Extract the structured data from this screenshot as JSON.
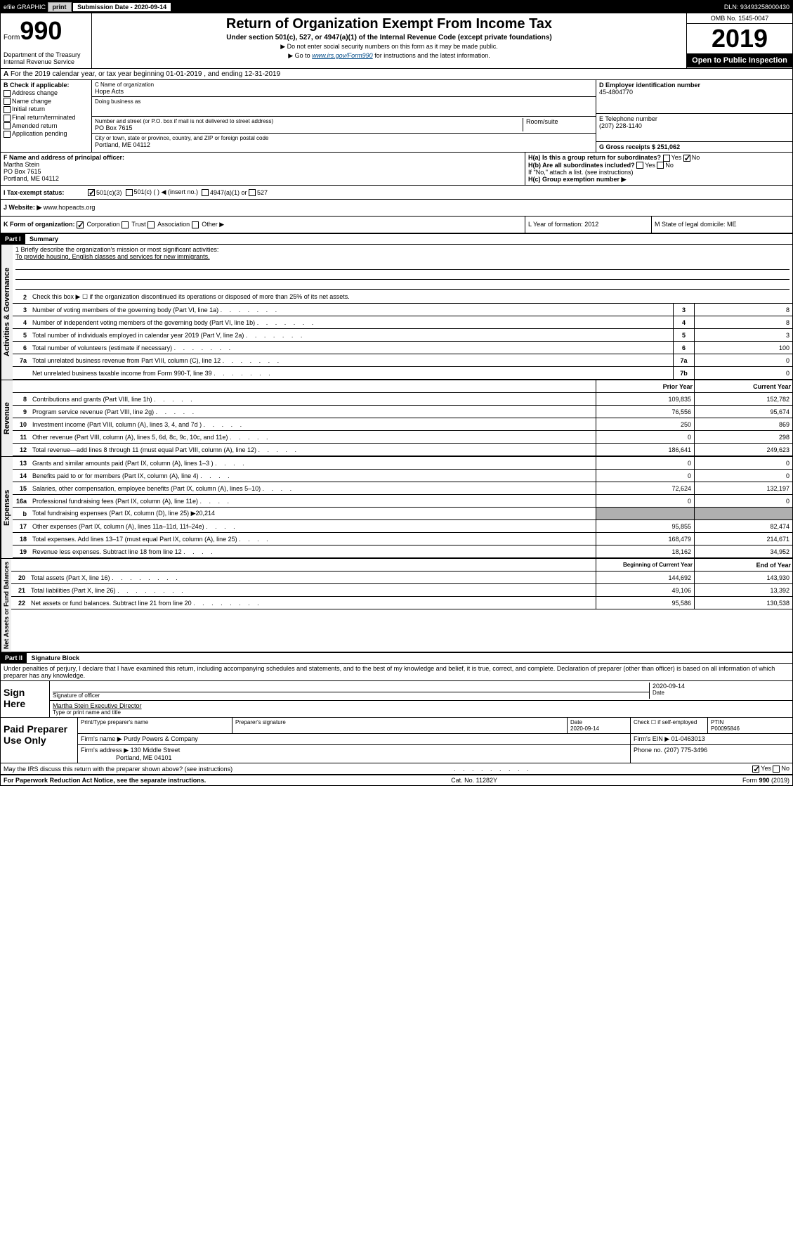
{
  "topbar": {
    "efile": "efile GRAPHIC",
    "print": "print",
    "sub_label": "Submission Date - 2020-09-14",
    "dln": "DLN: 93493258000430"
  },
  "header": {
    "form": "Form",
    "form_num": "990",
    "dept": "Department of the Treasury Internal Revenue Service",
    "title": "Return of Organization Exempt From Income Tax",
    "subtitle": "Under section 501(c), 527, or 4947(a)(1) of the Internal Revenue Code (except private foundations)",
    "note1": "▶ Do not enter social security numbers on this form as it may be made public.",
    "note2_pre": "▶ Go to ",
    "note2_link": "www.irs.gov/Form990",
    "note2_post": " for instructions and the latest information.",
    "omb": "OMB No. 1545-0047",
    "year": "2019",
    "open": "Open to Public Inspection"
  },
  "section_a": "For the 2019 calendar year, or tax year beginning 01-01-2019   , and ending 12-31-2019",
  "section_b": {
    "label": "B Check if applicable:",
    "items": [
      "Address change",
      "Name change",
      "Initial return",
      "Final return/terminated",
      "Amended return",
      "Application pending"
    ]
  },
  "section_c": {
    "name_label": "C Name of organization",
    "name": "Hope Acts",
    "dba_label": "Doing business as",
    "addr_label": "Number and street (or P.O. box if mail is not delivered to street address)",
    "room_label": "Room/suite",
    "addr": "PO Box 7615",
    "city_label": "City or town, state or province, country, and ZIP or foreign postal code",
    "city": "Portland, ME  04112"
  },
  "section_d": {
    "label": "D Employer identification number",
    "value": "45-4804770"
  },
  "section_e": {
    "label": "E Telephone number",
    "value": "(207) 228-1140"
  },
  "section_g": {
    "label": "G Gross receipts $ 251,062"
  },
  "section_f": {
    "label": "F  Name and address of principal officer:",
    "name": "Martha Stein",
    "addr": "PO Box 7615",
    "city": "Portland, ME  04112"
  },
  "section_h": {
    "ha": "H(a)  Is this a group return for subordinates?",
    "hb": "H(b)  Are all subordinates included?",
    "hb_note": "If \"No,\" attach a list. (see instructions)",
    "hc": "H(c)  Group exemption number ▶"
  },
  "section_i": {
    "label": "Tax-exempt status:",
    "opt1": "501(c)(3)",
    "opt2": "501(c) (  ) ◀ (insert no.)",
    "opt3": "4947(a)(1) or",
    "opt4": "527"
  },
  "section_j": {
    "label": "J   Website: ▶",
    "value": "www.hopeacts.org"
  },
  "section_k": {
    "label": "K Form of organization:",
    "corp": "Corporation",
    "trust": "Trust",
    "assoc": "Association",
    "other": "Other ▶",
    "l": "L Year of formation: 2012",
    "m": "M State of legal domicile: ME"
  },
  "part1": {
    "header": "Part I",
    "title": "Summary",
    "mission_label": "1  Briefly describe the organization's mission or most significant activities:",
    "mission": "To provide housing, English classes and services for new immigrants.",
    "line2": "Check this box ▶ ☐  if the organization discontinued its operations or disposed of more than 25% of its net assets.",
    "lines": [
      {
        "n": "3",
        "d": "Number of voting members of the governing body (Part VI, line 1a)",
        "b": "3",
        "v": "8"
      },
      {
        "n": "4",
        "d": "Number of independent voting members of the governing body (Part VI, line 1b)",
        "b": "4",
        "v": "8"
      },
      {
        "n": "5",
        "d": "Total number of individuals employed in calendar year 2019 (Part V, line 2a)",
        "b": "5",
        "v": "3"
      },
      {
        "n": "6",
        "d": "Total number of volunteers (estimate if necessary)",
        "b": "6",
        "v": "100"
      },
      {
        "n": "7a",
        "d": "Total unrelated business revenue from Part VIII, column (C), line 12",
        "b": "7a",
        "v": "0"
      },
      {
        "n": "",
        "d": "Net unrelated business taxable income from Form 990-T, line 39",
        "b": "7b",
        "v": "0"
      }
    ],
    "prior_year": "Prior Year",
    "current_year": "Current Year",
    "revenue": [
      {
        "n": "8",
        "d": "Contributions and grants (Part VIII, line 1h)",
        "p": "109,835",
        "c": "152,782"
      },
      {
        "n": "9",
        "d": "Program service revenue (Part VIII, line 2g)",
        "p": "76,556",
        "c": "95,674"
      },
      {
        "n": "10",
        "d": "Investment income (Part VIII, column (A), lines 3, 4, and 7d )",
        "p": "250",
        "c": "869"
      },
      {
        "n": "11",
        "d": "Other revenue (Part VIII, column (A), lines 5, 6d, 8c, 9c, 10c, and 11e)",
        "p": "0",
        "c": "298"
      },
      {
        "n": "12",
        "d": "Total revenue—add lines 8 through 11 (must equal Part VIII, column (A), line 12)",
        "p": "186,641",
        "c": "249,623"
      }
    ],
    "expenses": [
      {
        "n": "13",
        "d": "Grants and similar amounts paid (Part IX, column (A), lines 1–3 )",
        "p": "0",
        "c": "0"
      },
      {
        "n": "14",
        "d": "Benefits paid to or for members (Part IX, column (A), line 4)",
        "p": "0",
        "c": "0"
      },
      {
        "n": "15",
        "d": "Salaries, other compensation, employee benefits (Part IX, column (A), lines 5–10)",
        "p": "72,624",
        "c": "132,197"
      },
      {
        "n": "16a",
        "d": "Professional fundraising fees (Part IX, column (A), line 11e)",
        "p": "0",
        "c": "0"
      },
      {
        "n": "b",
        "d": "Total fundraising expenses (Part IX, column (D), line 25) ▶20,214",
        "shaded": true
      },
      {
        "n": "17",
        "d": "Other expenses (Part IX, column (A), lines 11a–11d, 11f–24e)",
        "p": "95,855",
        "c": "82,474"
      },
      {
        "n": "18",
        "d": "Total expenses. Add lines 13–17 (must equal Part IX, column (A), line 25)",
        "p": "168,479",
        "c": "214,671"
      },
      {
        "n": "19",
        "d": "Revenue less expenses. Subtract line 18 from line 12",
        "p": "18,162",
        "c": "34,952"
      }
    ],
    "begin_year": "Beginning of Current Year",
    "end_year": "End of Year",
    "netassets": [
      {
        "n": "20",
        "d": "Total assets (Part X, line 16)",
        "p": "144,692",
        "c": "143,930"
      },
      {
        "n": "21",
        "d": "Total liabilities (Part X, line 26)",
        "p": "49,106",
        "c": "13,392"
      },
      {
        "n": "22",
        "d": "Net assets or fund balances. Subtract line 21 from line 20",
        "p": "95,586",
        "c": "130,538"
      }
    ]
  },
  "part2": {
    "header": "Part II",
    "title": "Signature Block",
    "declaration": "Under penalties of perjury, I declare that I have examined this return, including accompanying schedules and statements, and to the best of my knowledge and belief, it is true, correct, and complete. Declaration of preparer (other than officer) is based on all information of which preparer has any knowledge.",
    "sign_here": "Sign Here",
    "sig_officer": "Signature of officer",
    "sig_date": "2020-09-14",
    "date_label": "Date",
    "officer_name": "Martha Stein Executive Director",
    "type_name": "Type or print name and title",
    "paid_prep": "Paid Preparer Use Only",
    "prep_name_label": "Print/Type preparer's name",
    "prep_sig_label": "Preparer's signature",
    "prep_date_label": "Date",
    "prep_date": "2020-09-14",
    "check_self": "Check ☐ if self-employed",
    "ptin_label": "PTIN",
    "ptin": "P00095846",
    "firm_name_label": "Firm's name    ▶",
    "firm_name": "Purdy Powers & Company",
    "firm_ein_label": "Firm's EIN ▶",
    "firm_ein": "01-0463013",
    "firm_addr_label": "Firm's address ▶",
    "firm_addr": "130 Middle Street",
    "firm_city": "Portland, ME  04101",
    "phone_label": "Phone no.",
    "phone": "(207) 775-3496",
    "discuss": "May the IRS discuss this return with the preparer shown above? (see instructions)"
  },
  "footer": {
    "paperwork": "For Paperwork Reduction Act Notice, see the separate instructions.",
    "cat": "Cat. No. 11282Y",
    "form": "Form 990 (2019)"
  }
}
